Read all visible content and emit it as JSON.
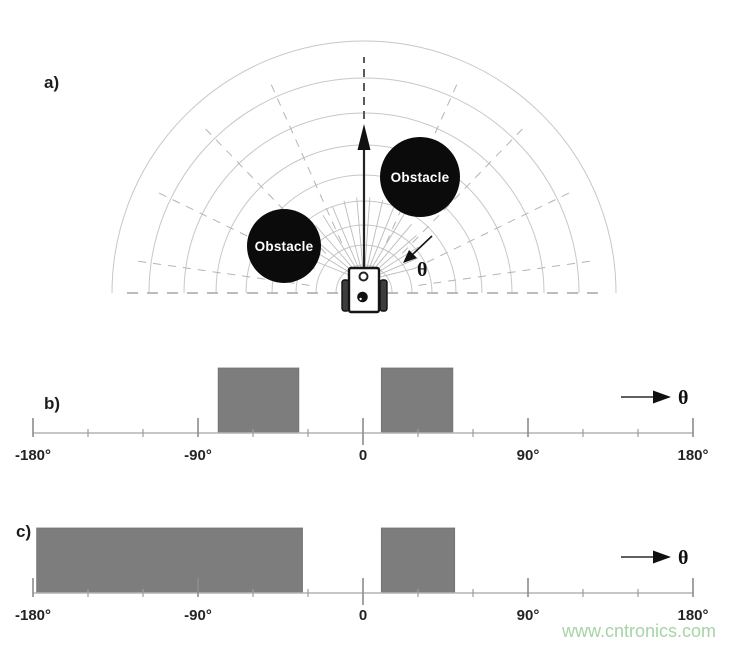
{
  "figure": {
    "panel_a": {
      "label": "a)",
      "obstacle_1": "Obstacle",
      "obstacle_2": "Obstacle",
      "theta_symbol": "θ",
      "obstacle_color": "#0b0b0b",
      "obstacle_text_color": "#ffffff"
    },
    "panel_b": {
      "label": "b)",
      "theta_symbol": "θ"
    },
    "panel_c": {
      "label": "c)",
      "theta_symbol": "θ"
    },
    "watermark": {
      "text": "www.cntronics.com",
      "color": "#a6d4a6"
    }
  },
  "chart_data": [
    {
      "type": "bar",
      "panel": "b",
      "title": "",
      "xlabel": "θ",
      "ylabel": "",
      "xlim": [
        -180,
        180
      ],
      "x_tick_degrees": [
        -180,
        -90,
        0,
        90,
        180
      ],
      "x_tick_labels": [
        "-180°",
        "-90°",
        "0",
        "90°",
        "180°"
      ],
      "minor_tick_step_deg": 30,
      "bars": [
        {
          "from_deg": -79,
          "to_deg": -35,
          "value": 1
        },
        {
          "from_deg": 10,
          "to_deg": 49,
          "value": 1
        }
      ],
      "bar_color": "#7d7d7d"
    },
    {
      "type": "bar",
      "panel": "c",
      "title": "",
      "xlabel": "θ",
      "ylabel": "",
      "xlim": [
        -180,
        180
      ],
      "x_tick_degrees": [
        -180,
        -90,
        0,
        90,
        180
      ],
      "x_tick_labels": [
        "-180°",
        "-90°",
        "0",
        "90°",
        "180°"
      ],
      "minor_tick_step_deg": 30,
      "bars": [
        {
          "from_deg": -178,
          "to_deg": -33,
          "value": 1
        },
        {
          "from_deg": 10,
          "to_deg": 50,
          "value": 1
        }
      ],
      "bar_color": "#7d7d7d"
    }
  ]
}
